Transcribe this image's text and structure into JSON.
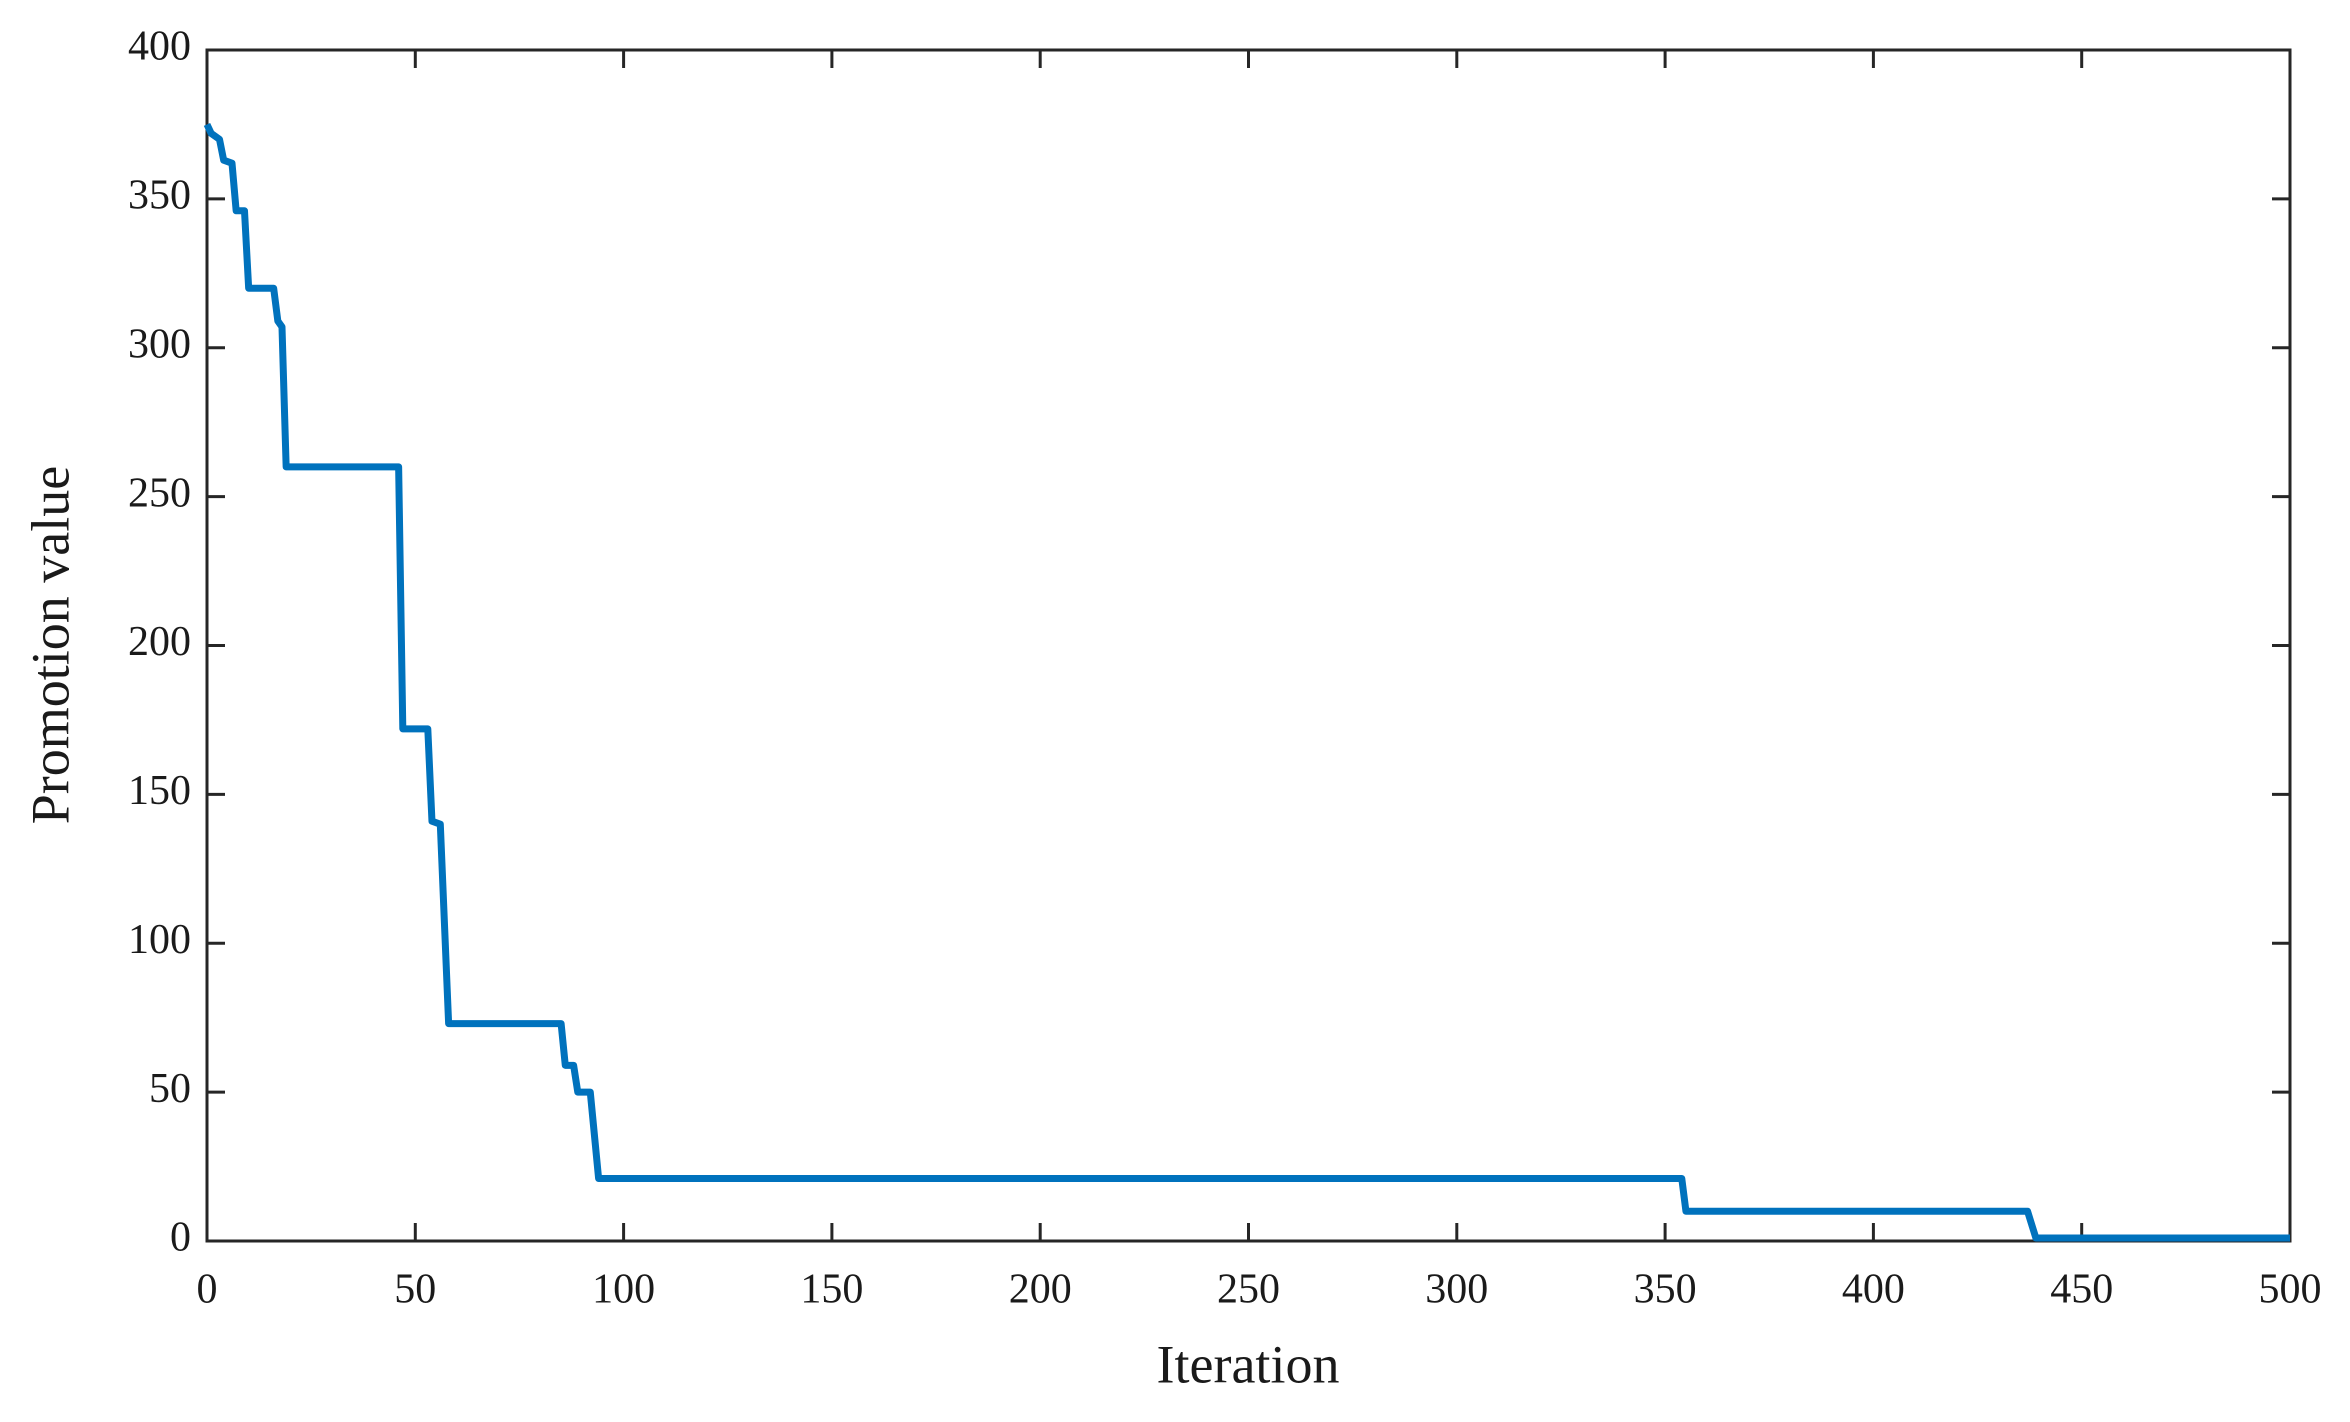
{
  "chart_data": {
    "type": "line",
    "xlabel": "Iteration",
    "ylabel": "Promotion value",
    "x": [
      0,
      1,
      3,
      4,
      6,
      7,
      9,
      10,
      16,
      17,
      18,
      19,
      46,
      47,
      53,
      54,
      56,
      58,
      85,
      86,
      88,
      89,
      92,
      94,
      354,
      355,
      437,
      439,
      500
    ],
    "series": [
      {
        "name": "Promotion value",
        "color": "#0072bd",
        "values": [
          375,
          372,
          370,
          363,
          362,
          346,
          346,
          320,
          320,
          309,
          307,
          260,
          260,
          172,
          172,
          141,
          140,
          73,
          73,
          59,
          59,
          50,
          50,
          21,
          21,
          10,
          10,
          1,
          1
        ]
      }
    ],
    "xlim": [
      0,
      500
    ],
    "xticks": [
      0,
      50,
      100,
      150,
      200,
      250,
      300,
      350,
      400,
      450,
      500
    ],
    "ylim": [
      0,
      400
    ],
    "yticks": [
      0,
      50,
      100,
      150,
      200,
      250,
      300,
      350,
      400
    ],
    "grid": false
  }
}
